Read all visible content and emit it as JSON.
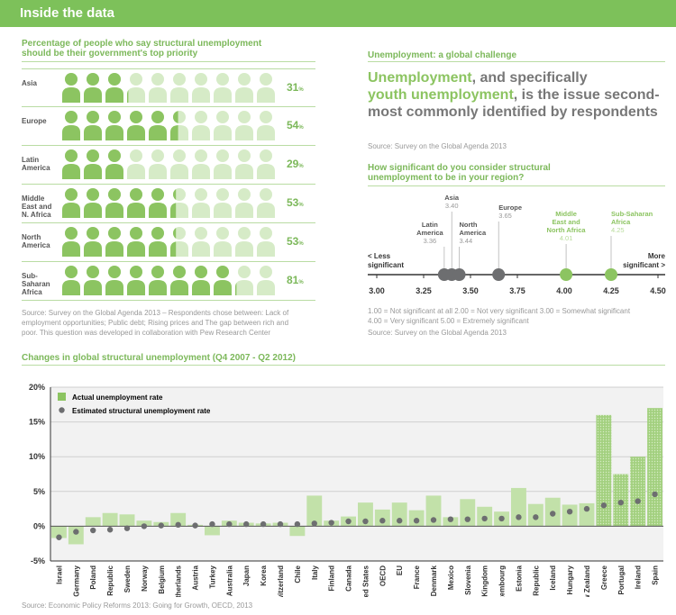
{
  "header": {
    "title": "Inside the data"
  },
  "pictogram": {
    "title_line1": "Percentage of people who say structural unemployment",
    "title_line2": "should be their government's top priority",
    "pct_suffix": "%",
    "rows": [
      {
        "label": [
          "Asia"
        ],
        "value": 31
      },
      {
        "label": [
          "Europe"
        ],
        "value": 54
      },
      {
        "label": [
          "Latin",
          "America"
        ],
        "value": 29
      },
      {
        "label": [
          "Middle",
          "East and",
          "N. Africa"
        ],
        "value": 53
      },
      {
        "label": [
          "North",
          "America"
        ],
        "value": 53
      },
      {
        "label": [
          "Sub-",
          "Saharan",
          "Africa"
        ],
        "value": 81
      }
    ],
    "source_line1": "Source: Survey on the Global Agenda 2013 – Respondents chose between: Lack of",
    "source_line2": "employment opportunities; Public debt; Rising prices and The gap between rich and",
    "source_line3": "poor. This question was developed in collaboration with Pew Research Center"
  },
  "global": {
    "title": "Unemployment: a global challenge",
    "headline_part1": "Unemployment",
    "headline_part2": ", and specifically",
    "headline_part3": "youth unemployment",
    "headline_part4": ", is the issue second-most commonly identified by respondents",
    "headline_source": "Source: Survey on the Global Agenda 2013",
    "question_line1": "How significant do you consider structural",
    "question_line2": "unemployment to be in your region?",
    "scale_left": [
      "< Less",
      "significant"
    ],
    "scale_right": [
      "More",
      "significant >"
    ],
    "scale_note_line1": "1.00 = Not significant at all  2.00 = Not very significant 3.00 = Somewhat significant",
    "scale_note_line2": "4.00 = Very significant  5.00 = Extremely significant",
    "scale_source": "Source: Survey on the Global Agenda 2013"
  },
  "chart_data": [
    {
      "type": "scatter",
      "title": "How significant do you consider structural unemployment to be in your region?",
      "xlim": [
        3.0,
        4.5
      ],
      "ticks": [
        "3.00",
        "3.25",
        "3.50",
        "3.75",
        "4.00",
        "4.25",
        "4.50"
      ],
      "points": [
        {
          "name": [
            "Latin",
            "America"
          ],
          "value": 3.36,
          "label": "3.36",
          "color": "#6d6e70"
        },
        {
          "name": [
            "Asia"
          ],
          "value": 3.4,
          "label": "3.40",
          "color": "#6d6e70"
        },
        {
          "name": [
            "North",
            "America"
          ],
          "value": 3.44,
          "label": "3.44",
          "color": "#6d6e70"
        },
        {
          "name": [
            "Europe"
          ],
          "value": 3.65,
          "label": "3.65",
          "color": "#6d6e70"
        },
        {
          "name": [
            "Middle",
            "East and",
            "North Africa"
          ],
          "value": 4.01,
          "label": "4.01",
          "color": "#8cc461"
        },
        {
          "name": [
            "Sub-Saharan",
            "Africa"
          ],
          "value": 4.25,
          "label": "4.25",
          "color": "#8cc461"
        }
      ]
    },
    {
      "type": "bar",
      "title": "Changes in global structural unemployment (Q4 2007 - Q2 2012)",
      "ylim": [
        -5,
        20
      ],
      "yticks": [
        "20%",
        "15%",
        "10%",
        "5%",
        "0%",
        "-5%"
      ],
      "legend": [
        "Actual unemployment rate",
        "Estimated structural unemployment rate"
      ],
      "categories": [
        "Israel",
        "Germany",
        "Poland",
        "Czech Republic",
        "Sweden",
        "Norway",
        "Belgium",
        "Netherlands",
        "Austria",
        "Turkey",
        "Australia",
        "Japan",
        "Korea",
        "Switzerland",
        "Chile",
        "Italy",
        "Finland",
        "Canada",
        "United States",
        "OECD",
        "EU",
        "France",
        "Denmark",
        "Mexico",
        "Slovenia",
        "United Kingdom",
        "Luxembourg",
        "Estonia",
        "Slovak Republic",
        "Iceland",
        "Hungary",
        "New Zealand",
        "Greece",
        "Portugal",
        "Ireland",
        "Spain"
      ],
      "series": [
        {
          "name": "Actual unemployment rate",
          "values": [
            -1.7,
            -2.6,
            1.3,
            1.9,
            1.7,
            0.8,
            0.6,
            1.9,
            0.2,
            -1.3,
            0.8,
            0.5,
            0.4,
            0.5,
            -1.4,
            4.4,
            0.8,
            1.4,
            3.4,
            2.4,
            3.4,
            2.3,
            4.4,
            1.3,
            3.9,
            2.8,
            2.1,
            5.5,
            3.2,
            4.1,
            3.1,
            3.3,
            16.0,
            7.5,
            10.0,
            17.0
          ]
        },
        {
          "name": "Estimated structural unemployment rate",
          "values": [
            -1.6,
            -0.8,
            -0.6,
            -0.5,
            -0.3,
            0.0,
            0.1,
            0.2,
            0.1,
            0.3,
            0.3,
            0.3,
            0.3,
            0.3,
            0.3,
            0.4,
            0.5,
            0.7,
            0.7,
            0.8,
            0.8,
            0.8,
            0.9,
            1.0,
            1.0,
            1.1,
            1.1,
            1.3,
            1.3,
            1.8,
            2.1,
            2.5,
            3.0,
            3.4,
            3.6,
            4.6
          ]
        }
      ],
      "source": "Source: Economic Policy Reforms 2013: Going for Growth, OECD, 2013"
    }
  ]
}
